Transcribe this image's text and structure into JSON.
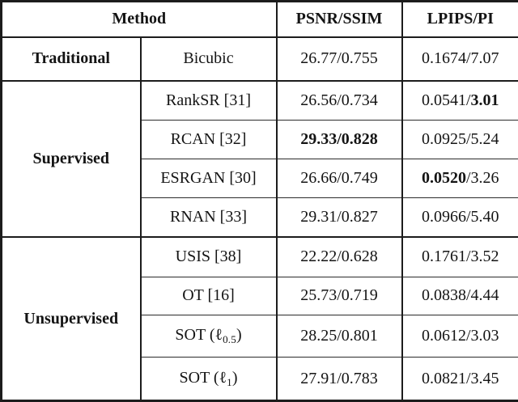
{
  "table": {
    "headers": {
      "method": "Method",
      "psnr_ssim": "PSNR/SSIM",
      "lpips_pi": "LPIPS/PI"
    },
    "groups": [
      {
        "category": "Traditional",
        "rows": [
          {
            "method": [
              {
                "t": "Bicubic"
              }
            ],
            "psnr": [
              {
                "t": "26.77/0.755"
              }
            ],
            "lpips": [
              {
                "t": "0.1674/7.07"
              }
            ]
          }
        ]
      },
      {
        "category": "Supervised",
        "rows": [
          {
            "method": [
              {
                "t": "RankSR [31]"
              }
            ],
            "psnr": [
              {
                "t": "26.56/0.734"
              }
            ],
            "lpips": [
              {
                "t": "0.0541/"
              },
              {
                "t": "3.01",
                "b": true
              }
            ]
          },
          {
            "method": [
              {
                "t": "RCAN [32]"
              }
            ],
            "psnr": [
              {
                "t": "29.33/0.828",
                "b": true
              }
            ],
            "lpips": [
              {
                "t": "0.0925/5.24"
              }
            ]
          },
          {
            "method": [
              {
                "t": "ESRGAN [30]"
              }
            ],
            "psnr": [
              {
                "t": "26.66/0.749"
              }
            ],
            "lpips": [
              {
                "t": "0.0520",
                "b": true
              },
              {
                "t": "/3.26"
              }
            ]
          },
          {
            "method": [
              {
                "t": "RNAN [33]"
              }
            ],
            "psnr": [
              {
                "t": "29.31/0.827"
              }
            ],
            "lpips": [
              {
                "t": "0.0966/5.40"
              }
            ]
          }
        ]
      },
      {
        "category": "Unsupervised",
        "rows": [
          {
            "method": [
              {
                "t": "USIS [38]"
              }
            ],
            "psnr": [
              {
                "t": "22.22/0.628"
              }
            ],
            "lpips": [
              {
                "t": "0.1761/3.52"
              }
            ]
          },
          {
            "method": [
              {
                "t": "OT [16]"
              }
            ],
            "psnr": [
              {
                "t": "25.73/0.719"
              }
            ],
            "lpips": [
              {
                "t": "0.0838/4.44"
              }
            ]
          },
          {
            "method": [
              {
                "t": "SOT ("
              },
              {
                "t": "ℓ"
              },
              {
                "t": "0.5",
                "sub": true
              },
              {
                "t": ")"
              }
            ],
            "psnr": [
              {
                "t": "28.25/0.801"
              }
            ],
            "lpips": [
              {
                "t": "0.0612/3.03"
              }
            ]
          },
          {
            "method": [
              {
                "t": "SOT ("
              },
              {
                "t": "ℓ"
              },
              {
                "t": "1",
                "sub": true
              },
              {
                "t": ")"
              }
            ],
            "psnr": [
              {
                "t": "27.91/0.783"
              }
            ],
            "lpips": [
              {
                "t": "0.0821/3.45"
              }
            ]
          }
        ]
      }
    ],
    "colors": {
      "border": "#1c1c1c",
      "text": "#141414",
      "background": "#ffffff"
    }
  }
}
